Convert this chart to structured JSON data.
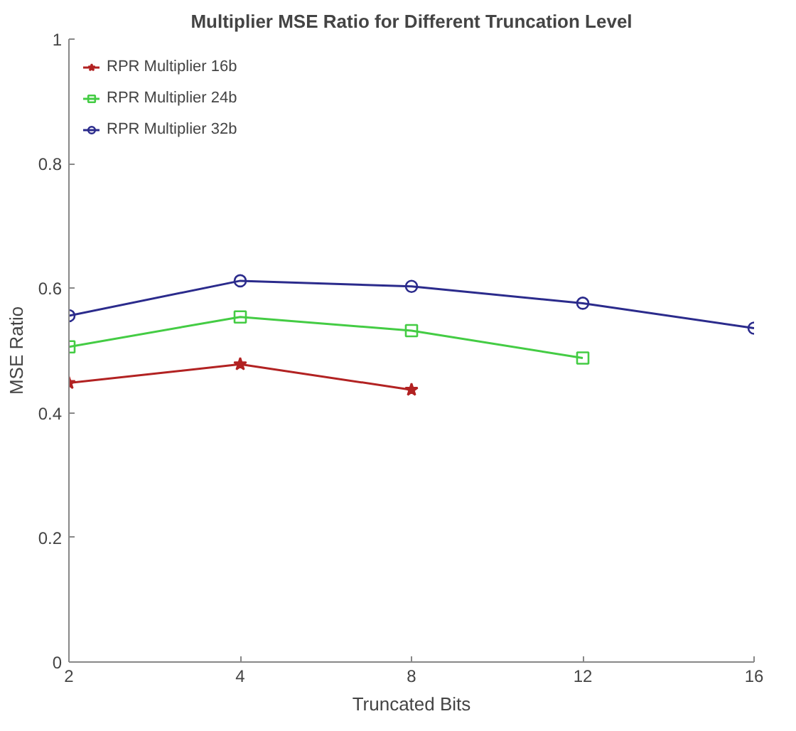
{
  "chart_data": {
    "type": "line",
    "title": "Multiplier MSE Ratio for Different Truncation Level",
    "xlabel": "Truncated Bits",
    "ylabel": "MSE Ratio",
    "categories": [
      "2",
      "4",
      "8",
      "12",
      "16"
    ],
    "ylim": [
      0,
      1
    ],
    "yticks": [
      0,
      0.2,
      0.4,
      0.6,
      0.8,
      1
    ],
    "grid": false,
    "legend": "top left",
    "series": [
      {
        "name": "RPR Multiplier 16b",
        "color": "#b22222",
        "marker": "star",
        "values": [
          0.448,
          0.478,
          0.437,
          null,
          null
        ]
      },
      {
        "name": "RPR Multiplier 24b",
        "color": "#44cc44",
        "marker": "square",
        "values": [
          0.506,
          0.554,
          0.532,
          0.488,
          null
        ]
      },
      {
        "name": "RPR Multiplier 32b",
        "color": "#2b2b8c",
        "marker": "circle",
        "values": [
          0.556,
          0.612,
          0.603,
          0.576,
          0.536
        ]
      }
    ]
  }
}
